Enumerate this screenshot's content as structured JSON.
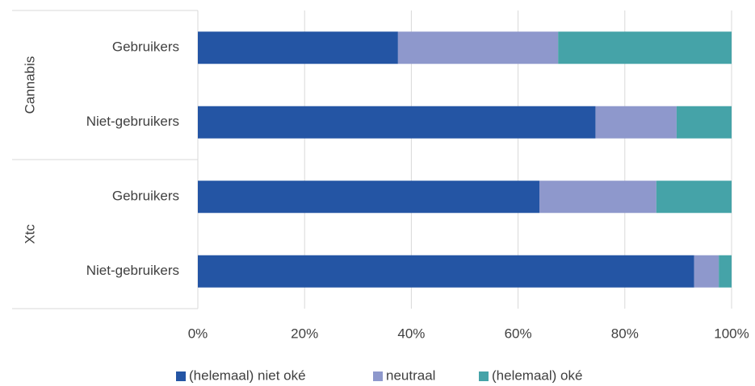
{
  "chart_data": {
    "type": "stacked_barh",
    "categories": [
      "Gebruikers",
      "Niet-gebruikers",
      "Gebruikers",
      "Niet-gebruikers"
    ],
    "group_labels": [
      "Cannabis",
      "Cannabis",
      "Xtc",
      "Xtc"
    ],
    "series": [
      {
        "name": "(helemaal) niet oké",
        "color": "#2455a4",
        "values": [
          37.5,
          74.5,
          64.0,
          93.0
        ]
      },
      {
        "name": "neutraal",
        "color": "#8e98cc",
        "values": [
          30.0,
          15.2,
          21.9,
          4.6
        ]
      },
      {
        "name": "(helemaal) oké",
        "color": "#45a3a8",
        "values": [
          32.5,
          10.3,
          14.1,
          2.4
        ]
      }
    ],
    "xlim": [
      0,
      100
    ],
    "xticks": [
      {
        "value": 0,
        "label": "0%"
      },
      {
        "value": 20,
        "label": "20%"
      },
      {
        "value": 40,
        "label": "40%"
      },
      {
        "value": 60,
        "label": "60%"
      },
      {
        "value": 80,
        "label": "80%"
      },
      {
        "value": 100,
        "label": "100%"
      }
    ],
    "grid": true,
    "legend": "bottom"
  }
}
